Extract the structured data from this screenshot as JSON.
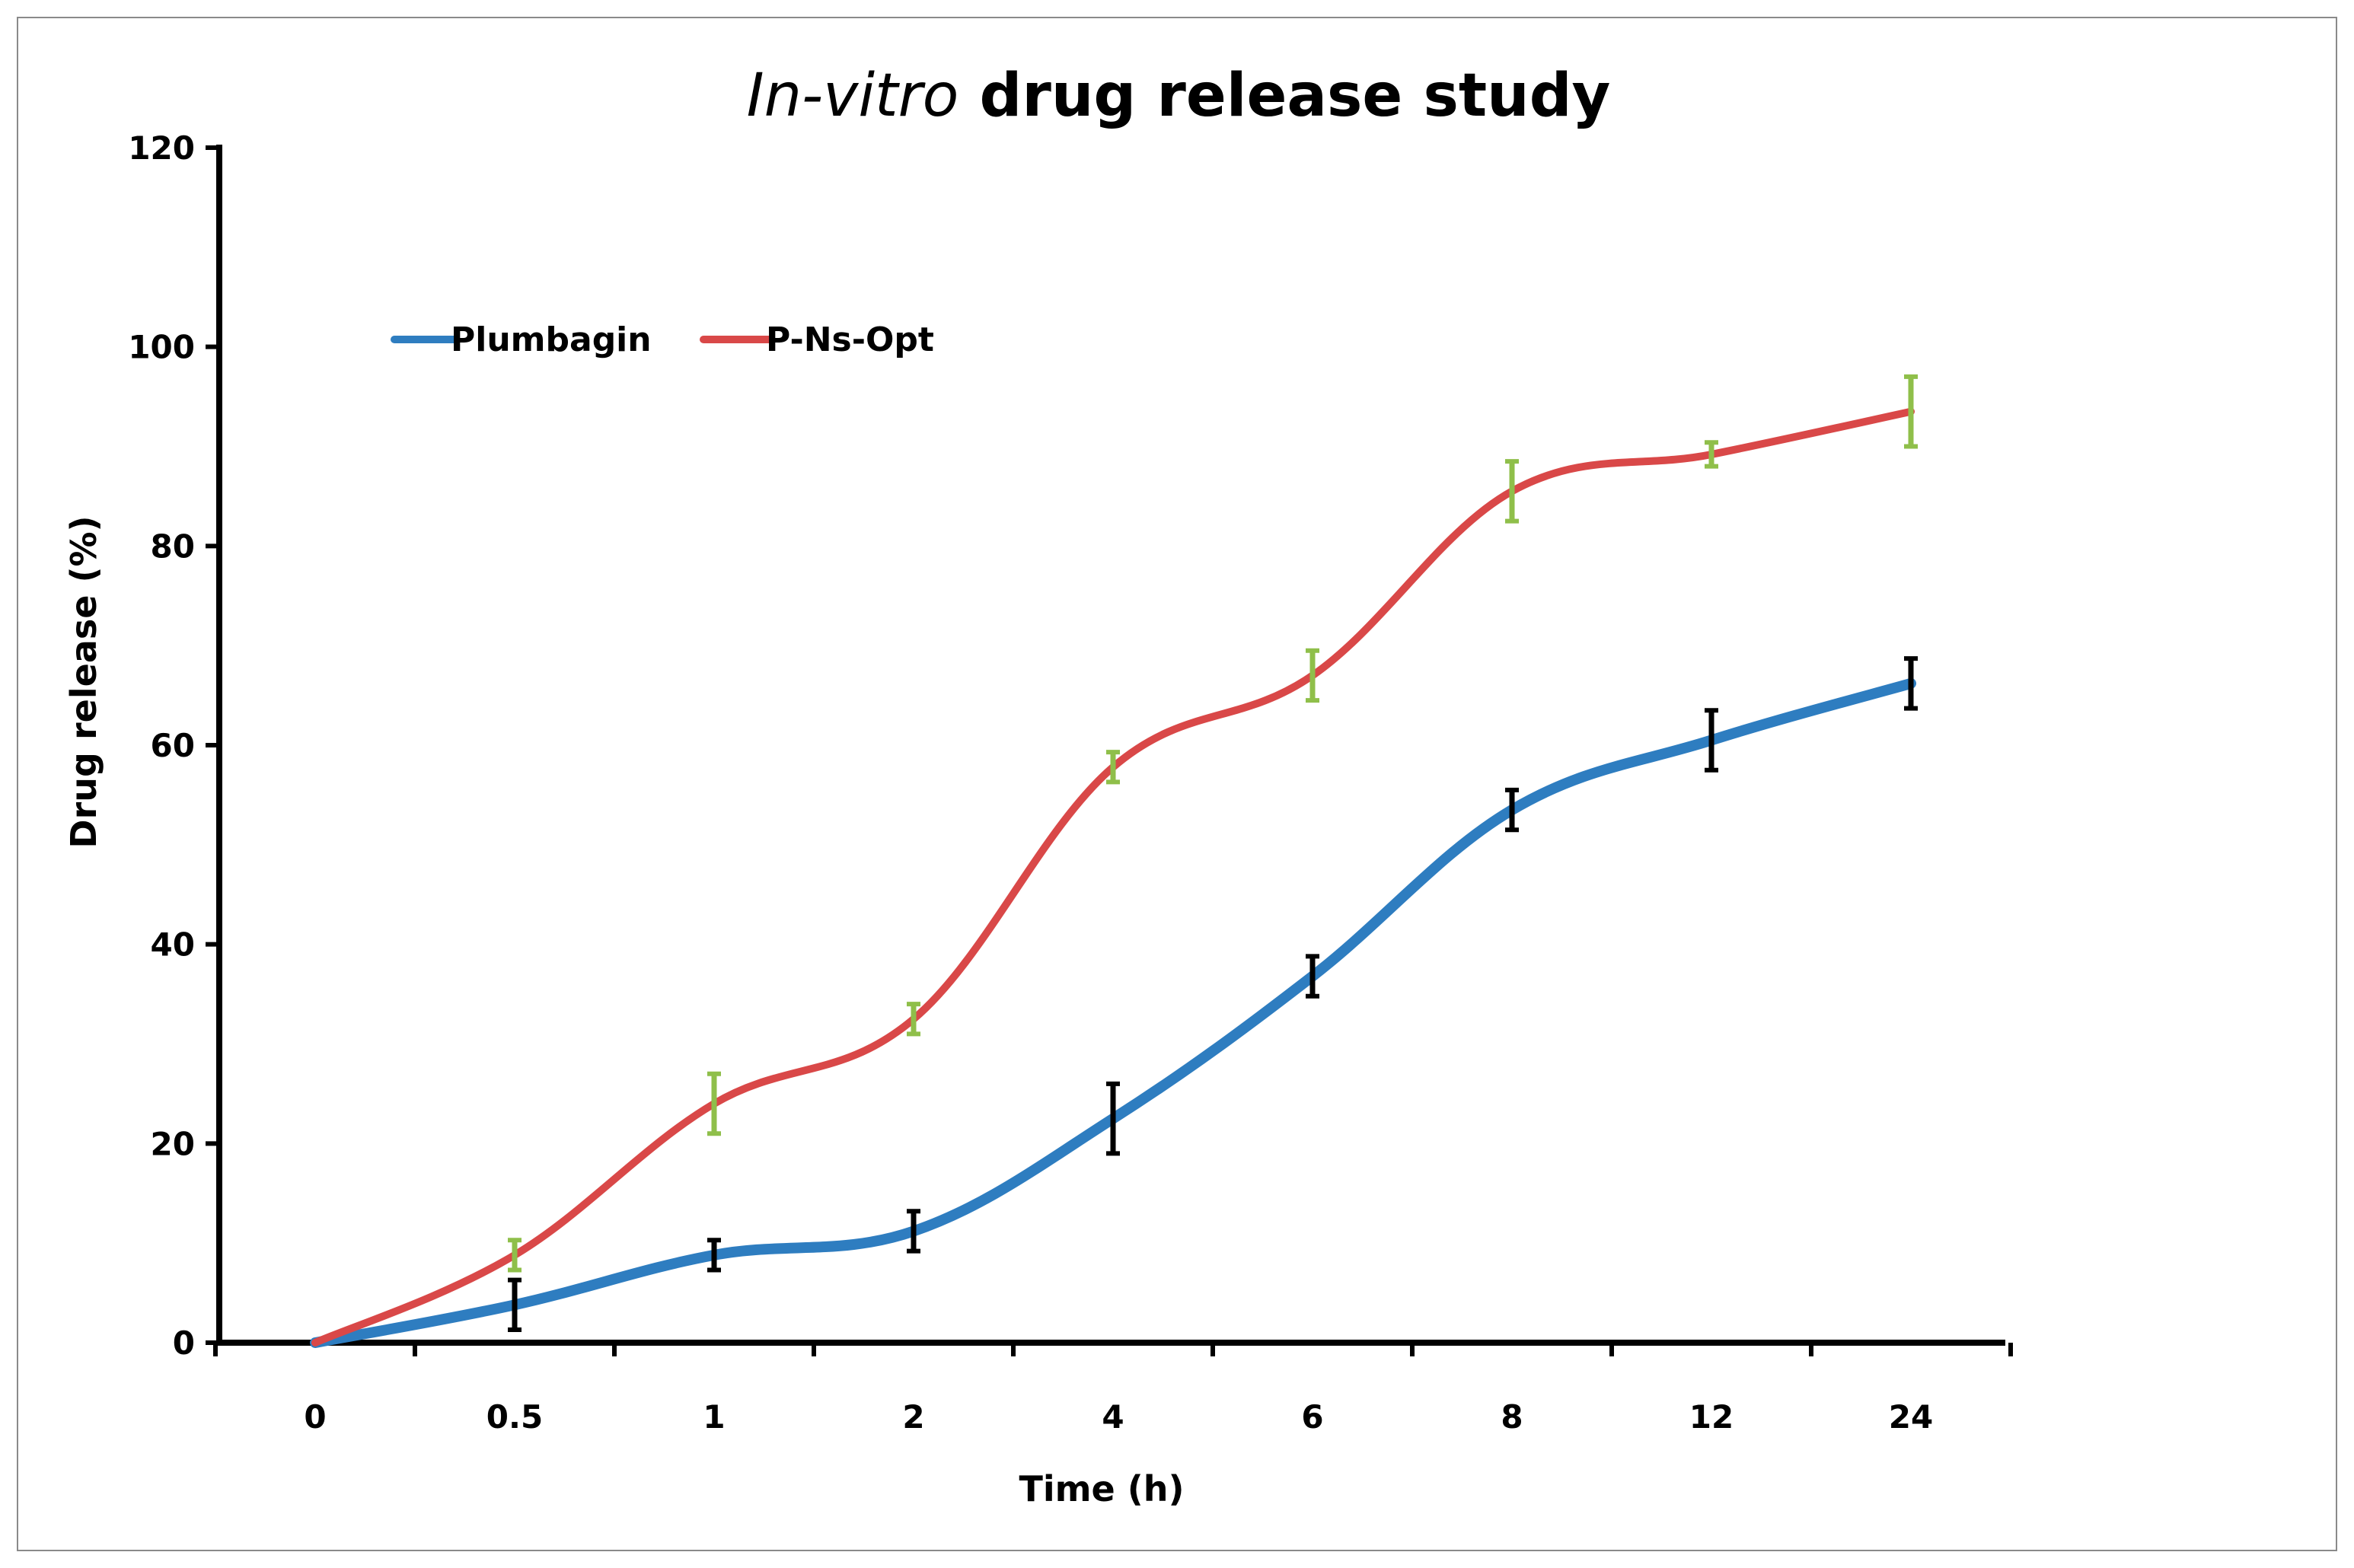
{
  "chart_data": {
    "type": "line",
    "title_italic": "In-vitro",
    "title_rest": " drug release study",
    "xlabel": "Time  (h)",
    "ylabel": "Drug release (%)",
    "categories": [
      "0",
      "0.5",
      "1",
      "2",
      "4",
      "6",
      "8",
      "12",
      "24"
    ],
    "ylim": [
      0,
      120
    ],
    "yticks": [
      0,
      20,
      40,
      60,
      80,
      100,
      120
    ],
    "grid": false,
    "legend_position": "top-left",
    "series": [
      {
        "name": "Plumbagin",
        "color": "#2e7dc0",
        "errorbar_color": "#000000",
        "values": [
          0,
          3.8,
          8.8,
          11.2,
          22.5,
          36.8,
          53.5,
          60.5,
          66.2
        ],
        "errors": [
          0,
          2.5,
          1.5,
          2.0,
          3.5,
          2.0,
          2.0,
          3.0,
          2.5
        ]
      },
      {
        "name": "P-Ns-Opt",
        "color": "#d94848",
        "errorbar_color": "#8fbf4a",
        "values": [
          0,
          8.8,
          24.0,
          32.5,
          57.8,
          67.0,
          85.5,
          89.2,
          93.5
        ],
        "errors": [
          0,
          1.5,
          3.0,
          1.5,
          1.5,
          2.5,
          3.0,
          1.2,
          3.5
        ]
      }
    ]
  }
}
